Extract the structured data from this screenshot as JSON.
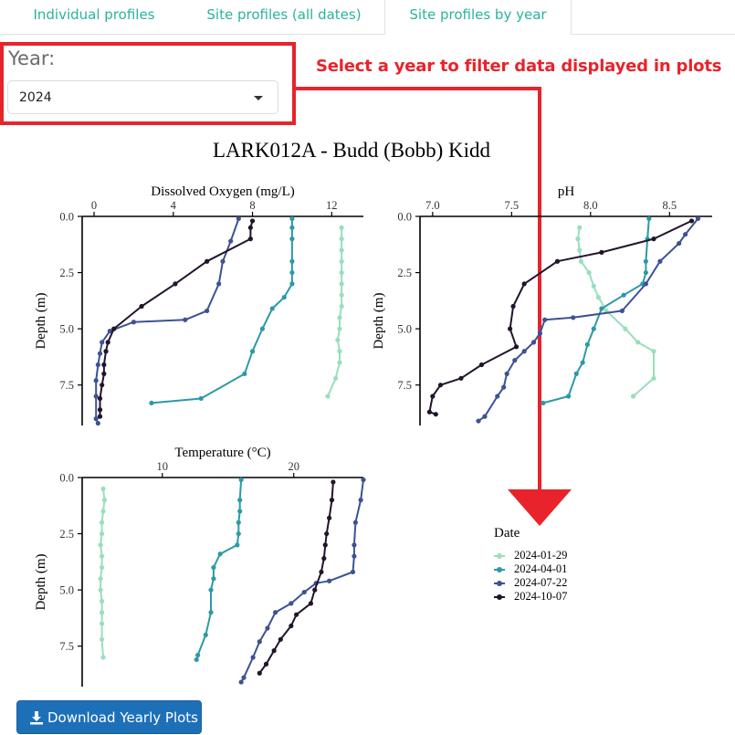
{
  "tabs": [
    {
      "label": "Individual profiles",
      "active": false
    },
    {
      "label": "Site profiles (all dates)",
      "active": false
    },
    {
      "label": "Site profiles by year",
      "active": true
    }
  ],
  "year": {
    "label": "Year:",
    "selected": "2024"
  },
  "annotation": {
    "text": "Select a year to filter data displayed in plots",
    "color": "#e8232b"
  },
  "plot_title": "LARK012A - Budd (Bobb) Kidd",
  "legend": {
    "title": "Date",
    "items": [
      {
        "label": "2024-01-29",
        "color": "#99dfbd"
      },
      {
        "label": "2024-04-01",
        "color": "#2c9aa6"
      },
      {
        "label": "2024-07-22",
        "color": "#3d5293"
      },
      {
        "label": "2024-10-07",
        "color": "#21152b"
      }
    ]
  },
  "download_button": {
    "label": "Download Yearly Plots",
    "icon": "download-icon",
    "color": "#1d70b8"
  },
  "chart_data": [
    {
      "type": "line",
      "title": "Dissolved Oxygen (mg/L)",
      "xlabel": "Dissolved Oxygen (mg/L)",
      "ylabel": "Depth (m)",
      "x_axis_position": "top",
      "y_reversed": true,
      "xlim": [
        -0.6,
        13.6
      ],
      "ylim": [
        0,
        9.3
      ],
      "xticks": [
        "0",
        "4",
        "8",
        "12"
      ],
      "xtick_values": [
        0,
        4,
        8,
        12
      ],
      "yticks": [
        "0.0",
        "2.5",
        "5.0",
        "7.5"
      ],
      "ytick_values": [
        0,
        2.5,
        5,
        7.5
      ],
      "series": [
        {
          "name": "2024-01-29",
          "x": [
            12.5,
            12.5,
            12.5,
            12.5,
            12.5,
            12.5,
            12.5,
            12.5,
            12.4,
            12.4,
            12.3,
            12.4,
            12.4,
            12.2,
            11.8
          ],
          "y": [
            0.5,
            1,
            1.5,
            2,
            2.5,
            3,
            3.5,
            4,
            4.5,
            5,
            5.5,
            6,
            6.5,
            7.2,
            8
          ]
        },
        {
          "name": "2024-04-01",
          "x": [
            10.0,
            10.0,
            10.0,
            10.0,
            10.0,
            10.0,
            9.6,
            9.0,
            8.5,
            8.0,
            7.6,
            5.4,
            2.9
          ],
          "y": [
            0.1,
            0.5,
            1,
            2,
            2.5,
            3,
            3.6,
            4.1,
            5,
            6,
            7,
            8.1,
            8.3
          ]
        },
        {
          "name": "2024-07-22",
          "x": [
            7.3,
            6.9,
            6.5,
            6.3,
            5.7,
            4.6,
            2.0,
            0.8,
            0.4,
            0.3,
            0.2,
            0.1,
            0.1,
            0.1,
            0.2
          ],
          "y": [
            0.1,
            1.1,
            2,
            3,
            4.2,
            4.6,
            4.7,
            5.1,
            5.6,
            6.1,
            6.6,
            7.3,
            8,
            9,
            9.2
          ]
        },
        {
          "name": "2024-10-07",
          "x": [
            8.0,
            7.9,
            7.9,
            5.7,
            4.1,
            2.4,
            1.0,
            0.7,
            0.6,
            0.5,
            0.5,
            0.4,
            0.3,
            0.3,
            0.3
          ],
          "y": [
            0.2,
            0.5,
            1,
            2,
            3,
            4,
            5,
            5.6,
            6,
            6.6,
            7,
            7.5,
            8.1,
            8.6,
            8.9
          ]
        }
      ]
    },
    {
      "type": "line",
      "title": "pH",
      "xlabel": "pH",
      "ylabel": "Depth (m)",
      "x_axis_position": "top",
      "y_reversed": true,
      "xlim": [
        6.92,
        8.77
      ],
      "ylim": [
        0,
        9.3
      ],
      "xticks": [
        "7.0",
        "7.5",
        "8.0",
        "8.5"
      ],
      "xtick_values": [
        7.0,
        7.5,
        8.0,
        8.5
      ],
      "yticks": [
        "0.0",
        "2.5",
        "5.0",
        "7.5"
      ],
      "ytick_values": [
        0,
        2.5,
        5,
        7.5
      ],
      "series": [
        {
          "name": "2024-01-29",
          "x": [
            7.93,
            7.92,
            7.93,
            7.94,
            7.99,
            8.02,
            8.05,
            8.1,
            8.22,
            8.3,
            8.4,
            8.4,
            8.27
          ],
          "y": [
            0.5,
            1,
            1.5,
            2,
            2.5,
            3.1,
            3.6,
            4.2,
            5,
            5.6,
            6,
            7.2,
            8
          ]
        },
        {
          "name": "2024-04-01",
          "x": [
            8.37,
            8.36,
            8.35,
            8.35,
            8.33,
            8.21,
            8.07,
            8.02,
            7.98,
            7.95,
            7.91,
            7.86,
            7.7
          ],
          "y": [
            0.1,
            1,
            2,
            2.5,
            3,
            3.5,
            4.1,
            5,
            5.7,
            6.5,
            7,
            8,
            8.3
          ]
        },
        {
          "name": "2024-07-22",
          "x": [
            8.68,
            8.6,
            8.56,
            8.44,
            8.35,
            8.2,
            7.89,
            7.71,
            7.68,
            7.64,
            7.58,
            7.52,
            7.47,
            7.45,
            7.41,
            7.33,
            7.29
          ],
          "y": [
            0.1,
            0.8,
            1.2,
            2,
            3,
            4.2,
            4.5,
            4.6,
            5.2,
            5.6,
            6,
            6.4,
            7,
            7.6,
            8,
            8.9,
            9.1
          ]
        },
        {
          "name": "2024-10-07",
          "x": [
            8.64,
            8.4,
            8.07,
            7.79,
            7.58,
            7.51,
            7.49,
            7.53,
            7.31,
            7.18,
            7.05,
            7.0,
            6.98,
            7.02
          ],
          "y": [
            0.2,
            1,
            1.6,
            2,
            3,
            4,
            5,
            5.8,
            6.6,
            7.2,
            7.5,
            8,
            8.7,
            8.8
          ]
        }
      ]
    },
    {
      "type": "line",
      "title": "Temperature (°C)",
      "xlabel": "Temperature (°C)",
      "ylabel": "Depth (m)",
      "x_axis_position": "top",
      "y_reversed": true,
      "xlim": [
        3.9,
        25.3
      ],
      "ylim": [
        0,
        9.3
      ],
      "xticks": [
        "10",
        "20"
      ],
      "xtick_values": [
        10,
        20
      ],
      "yticks": [
        "0.0",
        "2.5",
        "5.0",
        "7.5"
      ],
      "ytick_values": [
        0,
        2.5,
        5,
        7.5
      ],
      "series": [
        {
          "name": "2024-01-29",
          "x": [
            5.5,
            5.6,
            5.5,
            5.4,
            5.4,
            5.3,
            5.4,
            5.4,
            5.3,
            5.3,
            5.4,
            5.4,
            5.4,
            5.4,
            5.5
          ],
          "y": [
            0.5,
            1,
            1.5,
            2,
            2.5,
            3,
            3.5,
            4,
            4.5,
            5,
            5.5,
            6,
            6.5,
            7.2,
            8
          ]
        },
        {
          "name": "2024-04-01",
          "x": [
            16.0,
            15.9,
            15.9,
            15.8,
            15.8,
            15.7,
            14.4,
            13.9,
            13.9,
            13.7,
            13.7,
            13.3,
            12.7,
            12.6
          ],
          "y": [
            0.1,
            1,
            1.5,
            2,
            2.5,
            3,
            3.4,
            4,
            4.5,
            5,
            6,
            7,
            7.9,
            8.1
          ]
        },
        {
          "name": "2024-07-22",
          "x": [
            25.3,
            25.1,
            24.7,
            24.6,
            24.6,
            24.5,
            22.7,
            21.7,
            20.8,
            19.8,
            18.6,
            18.0,
            17.4,
            16.9,
            16.2,
            16.0
          ],
          "y": [
            0.1,
            1,
            2,
            3,
            3.5,
            4.2,
            4.6,
            4.7,
            5.1,
            5.6,
            6,
            6.7,
            7.3,
            8,
            8.9,
            9.1
          ]
        },
        {
          "name": "2024-10-07",
          "x": [
            23.0,
            22.9,
            22.7,
            22.5,
            22.4,
            22.3,
            22.1,
            21.6,
            21.3,
            20.2,
            19.8,
            19.0,
            18.5,
            17.9,
            17.4
          ],
          "y": [
            0.2,
            1,
            1.8,
            2.5,
            3,
            3.6,
            4.2,
            5,
            5.6,
            6.1,
            6.6,
            7.2,
            7.7,
            8.3,
            8.7
          ]
        }
      ]
    }
  ]
}
